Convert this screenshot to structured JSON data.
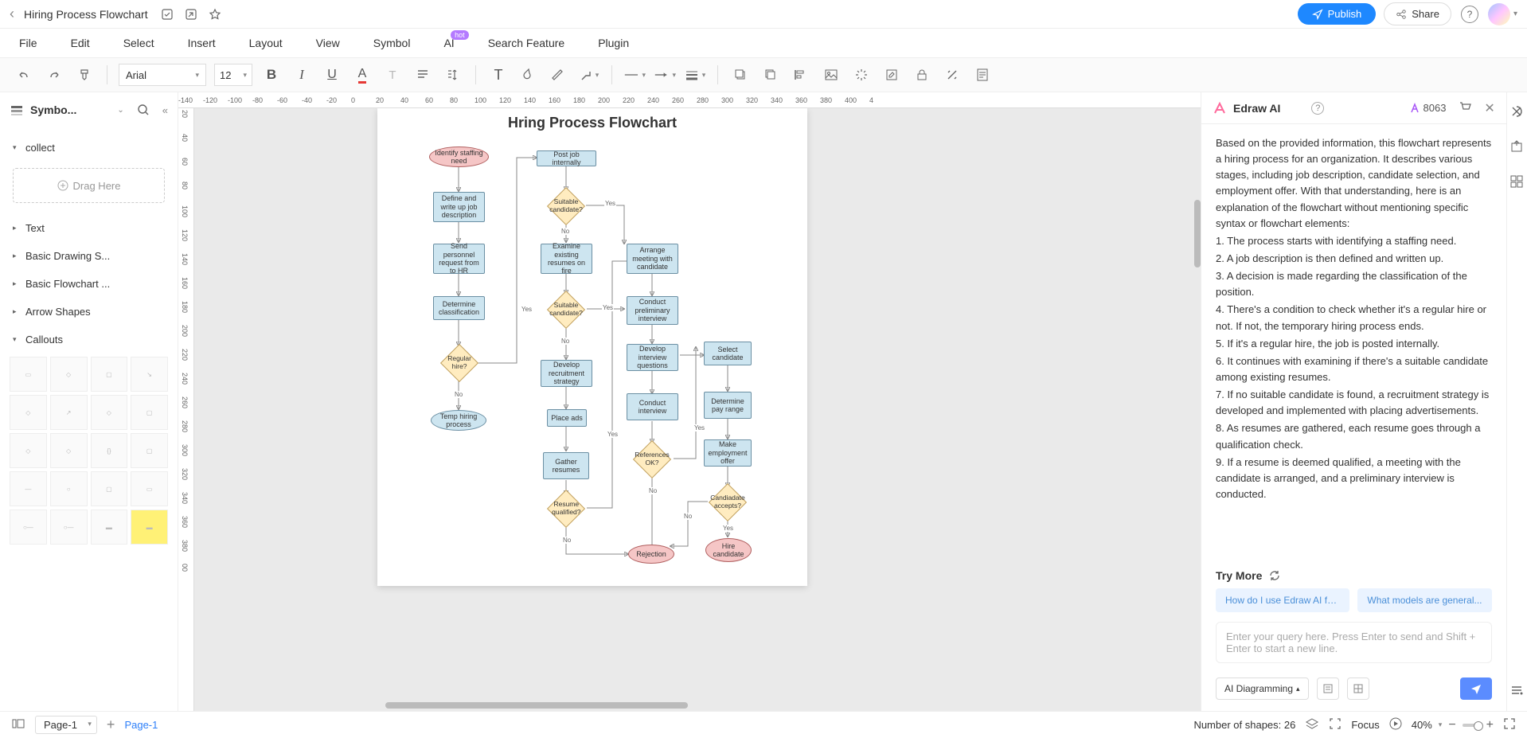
{
  "titlebar": {
    "document_title": "Hiring Process Flowchart",
    "publish": "Publish",
    "share": "Share"
  },
  "menu": {
    "file": "File",
    "edit": "Edit",
    "select": "Select",
    "insert": "Insert",
    "layout": "Layout",
    "view": "View",
    "symbol": "Symbol",
    "ai": "AI",
    "hot": "hot",
    "search_feature": "Search Feature",
    "plugin": "Plugin"
  },
  "toolbar": {
    "font": "Arial",
    "size": "12"
  },
  "left": {
    "title": "Symbo...",
    "collect": "collect",
    "drag_here": "Drag Here",
    "sections": {
      "text": "Text",
      "basic_drawing": "Basic Drawing S...",
      "basic_flowchart": "Basic Flowchart ...",
      "arrow_shapes": "Arrow Shapes",
      "callouts": "Callouts"
    }
  },
  "ruler_h": [
    "-140",
    "-120",
    "-100",
    "-80",
    "-60",
    "-40",
    "-20",
    "0",
    "20",
    "40",
    "60",
    "80",
    "100",
    "120",
    "140",
    "160",
    "180",
    "200",
    "220",
    "240",
    "260",
    "280",
    "300",
    "320",
    "340",
    "360",
    "380",
    "400",
    "4"
  ],
  "ruler_v": [
    "20",
    "40",
    "60",
    "80",
    "100",
    "120",
    "140",
    "160",
    "180",
    "200",
    "220",
    "240",
    "260",
    "280",
    "300",
    "320",
    "340",
    "360",
    "380",
    "00"
  ],
  "flowchart": {
    "title": "Hring Process Flowchart",
    "nodes": {
      "n1": "Identify staffing need",
      "n2": "Define and write up job description",
      "n3": "Send personnel request from to HR",
      "n4": "Determine classification",
      "n5": "Regular hire?",
      "n6": "Temp hiring process",
      "n7": "Post job internally",
      "n8": "Suitable candidate?",
      "n9": "Examine existing resumes on fire",
      "n10": "Suitable candidate?",
      "n11": "Develop recruitment strategy",
      "n12": "Place ads",
      "n13": "Gather resumes",
      "n14": "Resume qualified?",
      "n15": "Arrange meeting with candidate",
      "n16": "Conduct preliminary interview",
      "n17": "Develop interview questions",
      "n18": "Conduct interview",
      "n19": "References OK?",
      "n20": "Rejection",
      "n21": "Select candidate",
      "n22": "Determine pay range",
      "n23": "Make employment offer",
      "n24": "Candiadate accepts?",
      "n25": "Hire candidate"
    },
    "labels": {
      "yes": "Yes",
      "no": "No"
    },
    "node_colors": {
      "rect_fill": "#cde5f0",
      "rect_stroke": "#6b8fa3",
      "oval_fill": "#f5c6c6",
      "oval_stroke": "#b05f5f",
      "diamond_fill": "#ffecc0",
      "diamond_stroke": "#c0a05f",
      "line": "#888888"
    }
  },
  "ai": {
    "title": "Edraw AI",
    "points": "8063",
    "body_intro": "Based on the provided information, this flowchart represents a hiring process for an organization. It describes various stages, including job description, candidate selection, and employment offer. With that understanding, here is an explanation of the flowchart without mentioning specific syntax or flowchart elements:",
    "b1": "1. The process starts with identifying a staffing need.",
    "b2": "2. A job description is then defined and written up.",
    "b3": "3. A decision is made regarding the classification of the position.",
    "b4": "4. There's a condition to check whether it's a regular hire or not. If not, the temporary hiring process ends.",
    "b5": "5. If it's a regular hire, the job is posted internally.",
    "b6": "6. It continues with examining if there's a suitable candidate among existing resumes.",
    "b7": "7. If no suitable candidate is found, a recruitment strategy is developed and implemented with placing advertisements.",
    "b8": "8. As resumes are gathered, each resume goes through a qualification check.",
    "b9": "9. If a resume is deemed qualified, a meeting with the candidate is arranged, and a preliminary interview is conducted.",
    "try_more": "Try More",
    "suggest1": "How do I use Edraw AI fo...",
    "suggest2": "What models are general...",
    "placeholder": "Enter your query here. Press Enter to send and Shift + Enter to start a new line.",
    "mode": "AI Diagramming"
  },
  "bottom": {
    "page_dd": "Page-1",
    "page_tab": "Page-1",
    "shapes": "Number of shapes: 26",
    "focus": "Focus",
    "zoom": "40%"
  }
}
